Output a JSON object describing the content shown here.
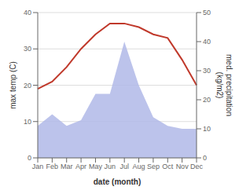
{
  "chart_data": {
    "type": "line",
    "categories": [
      "Jan",
      "Feb",
      "Mar",
      "Apr",
      "May",
      "Jun",
      "Jul",
      "Aug",
      "Sep",
      "Oct",
      "Nov",
      "Dec"
    ],
    "xlabel": "date (month)",
    "ylabel": "max temp (C)",
    "y2label": "med. precipitation\n(kg/m2)",
    "series": [
      {
        "type": "area",
        "color": "#b0b8e8",
        "axis": "y2",
        "values": [
          11,
          15,
          11,
          13,
          22,
          22,
          40,
          25,
          14,
          11,
          10,
          10
        ]
      },
      {
        "type": "line",
        "color": "#c0392b",
        "values": [
          19,
          21,
          25,
          30,
          34,
          37,
          37,
          36,
          34,
          33,
          27,
          20
        ]
      }
    ],
    "ylim": [
      0,
      40
    ],
    "yticks": [
      0,
      10,
      20,
      30,
      40
    ],
    "y2lim": [
      0,
      50
    ],
    "y2ticks": [
      0,
      10,
      20,
      30,
      40,
      50
    ],
    "grid": true
  }
}
